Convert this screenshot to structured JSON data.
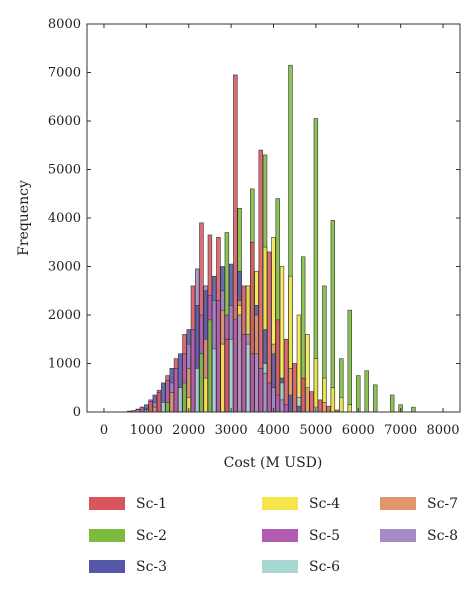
{
  "chart_data": {
    "type": "bar",
    "title": "",
    "xlabel": "Cost (M USD)",
    "ylabel": "Frequency",
    "xlim": [
      -400,
      8400
    ],
    "ylim": [
      0,
      8000
    ],
    "xticks": [
      0,
      1000,
      2000,
      3000,
      4000,
      5000,
      6000,
      7000,
      8000
    ],
    "yticks": [
      0,
      1000,
      2000,
      3000,
      4000,
      5000,
      6000,
      7000,
      8000
    ],
    "bin_width": 100,
    "grid": false,
    "legend_position": "bottom",
    "legend_columns": 3,
    "series": [
      {
        "name": "Sc-1",
        "color": "#d9555e",
        "x": [
          700,
          900,
          1100,
          1300,
          1500,
          1700,
          1900,
          2100,
          2300,
          2500,
          2700,
          2900,
          3100,
          3300,
          3500,
          3700,
          3900,
          4100,
          4300,
          4500,
          4700,
          4900,
          5100,
          5300,
          5500
        ],
        "y": [
          30,
          100,
          220,
          400,
          750,
          1100,
          1600,
          2600,
          3900,
          3650,
          3600,
          1500,
          6950,
          2600,
          3500,
          5400,
          3300,
          1900,
          1500,
          1000,
          700,
          420,
          250,
          120,
          40
        ]
      },
      {
        "name": "Sc-2",
        "color": "#7dbb3e",
        "x": [
          1500,
          1900,
          2300,
          2500,
          2900,
          3200,
          3500,
          3800,
          4100,
          4400,
          4700,
          5000,
          5200,
          5400,
          5600,
          5800,
          6000,
          6200,
          6400,
          6800,
          7000,
          7300
        ],
        "y": [
          200,
          600,
          1200,
          1900,
          3700,
          4200,
          4600,
          5300,
          4400,
          7150,
          3200,
          6050,
          2600,
          3950,
          1100,
          2100,
          750,
          850,
          560,
          350,
          150,
          100
        ]
      },
      {
        "name": "Sc-3",
        "color": "#5757a9",
        "x": [
          600,
          800,
          1000,
          1200,
          1400,
          1600,
          1800,
          2000,
          2200,
          2400,
          2600,
          2800,
          3000,
          3200,
          3400,
          3600,
          3800,
          4000,
          4200,
          4400,
          4600
        ],
        "y": [
          20,
          60,
          150,
          350,
          600,
          900,
          1200,
          1700,
          2200,
          2500,
          2800,
          3000,
          3050,
          2900,
          2600,
          2200,
          1700,
          1200,
          700,
          350,
          120
        ]
      },
      {
        "name": "Sc-4",
        "color": "#f5e64a",
        "x": [
          2000,
          2400,
          2800,
          3200,
          3400,
          3600,
          3800,
          4000,
          4200,
          4400,
          4600,
          4800,
          5000,
          5200,
          5400,
          5600,
          5800
        ],
        "y": [
          300,
          700,
          1400,
          2200,
          2600,
          2900,
          3400,
          3600,
          3000,
          2800,
          2000,
          1600,
          1100,
          700,
          500,
          300,
          150
        ]
      },
      {
        "name": "Sc-5",
        "color": "#b35ab2",
        "x": [
          900,
          1100,
          1300,
          1500,
          1700,
          1900,
          2100,
          2300,
          2500,
          2700,
          2900,
          3100,
          3300,
          3500,
          3700,
          3900,
          4100,
          4300
        ],
        "y": [
          100,
          250,
          450,
          650,
          900,
          1200,
          1700,
          2000,
          2400,
          2300,
          2000,
          1900,
          1600,
          1200,
          900,
          600,
          350,
          150
        ]
      },
      {
        "name": "Sc-6",
        "color": "#a8d8d2",
        "x": [
          1000,
          1400,
          1800,
          2200,
          2600,
          3000,
          3400,
          3800,
          4200,
          4600,
          5000
        ],
        "y": [
          50,
          200,
          500,
          900,
          1300,
          1500,
          1400,
          1000,
          600,
          300,
          100
        ]
      },
      {
        "name": "Sc-7",
        "color": "#e0956a",
        "x": [
          1200,
          1600,
          2000,
          2400,
          2800,
          3200,
          3600,
          4000,
          4400,
          4800,
          5200
        ],
        "y": [
          100,
          400,
          900,
          1500,
          2100,
          2300,
          2000,
          1400,
          900,
          500,
          200
        ]
      },
      {
        "name": "Sc-8",
        "color": "#a68ac5",
        "x": [
          800,
          1200,
          1600,
          2000,
          2200,
          2400,
          2600,
          2800,
          3000,
          3200,
          3400,
          3600,
          3800,
          4000,
          4200
        ],
        "y": [
          50,
          200,
          600,
          1400,
          2950,
          2600,
          2300,
          2500,
          2200,
          2000,
          1600,
          1200,
          800,
          500,
          250
        ]
      }
    ]
  }
}
